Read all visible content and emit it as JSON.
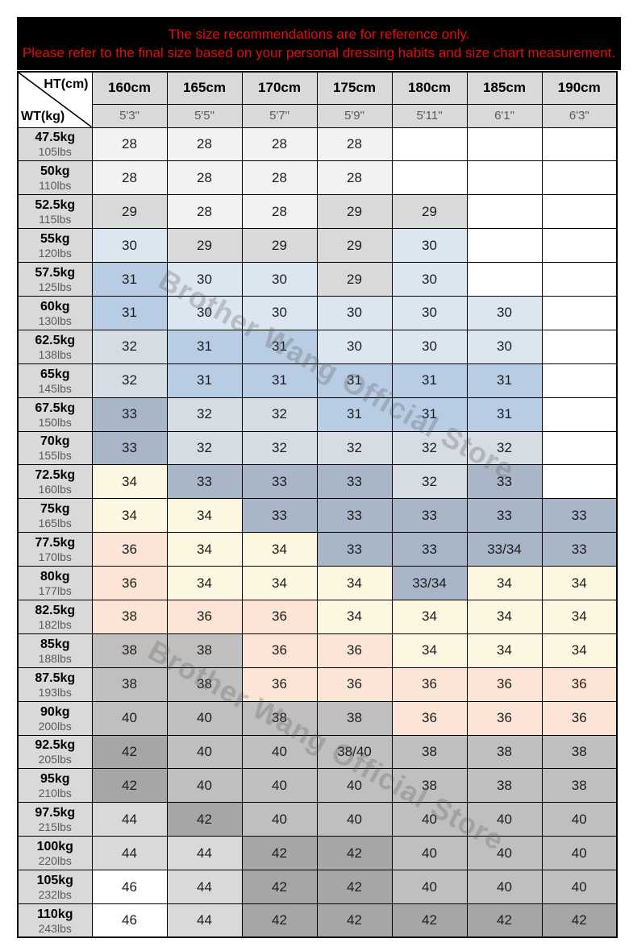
{
  "notice": {
    "line1": "The size recommendations are for reference only.",
    "line2": "Please refer to the final size based on your personal dressing habits and size chart measurement."
  },
  "watermark": {
    "text": "Brother Wang Official Store"
  },
  "colors": {
    "w": "#ffffff",
    "l1": "#f2f2f2",
    "g": "#d9d9d9",
    "b1": "#dce6f1",
    "b2": "#b8cce4",
    "bg": "#d6dce4",
    "s": "#a9b6c8",
    "c": "#fdf7e2",
    "p": "#fce4d6",
    "gr": "#bfbfbf",
    "d": "#a6a6a6",
    "accent_red": "#e60d0d",
    "banner_bg": "#000000",
    "header_bg": "#d9d9d9"
  },
  "table": {
    "corner": {
      "top": "HT(cm)",
      "bottom": "WT(kg)"
    },
    "columns": [
      {
        "cm": "160cm",
        "ft": "5'3\""
      },
      {
        "cm": "165cm",
        "ft": "5'5\""
      },
      {
        "cm": "170cm",
        "ft": "5'7\""
      },
      {
        "cm": "175cm",
        "ft": "5'9\""
      },
      {
        "cm": "180cm",
        "ft": "5'11\""
      },
      {
        "cm": "185cm",
        "ft": "6'1\""
      },
      {
        "cm": "190cm",
        "ft": "6'3\""
      }
    ],
    "rows": [
      {
        "kg": "47.5kg",
        "lbs": "105lbs",
        "cells": [
          {
            "v": "28",
            "c": "l1"
          },
          {
            "v": "28",
            "c": "l1"
          },
          {
            "v": "28",
            "c": "l1"
          },
          {
            "v": "28",
            "c": "l1"
          },
          {
            "v": "",
            "c": "w"
          },
          {
            "v": "",
            "c": "w"
          },
          {
            "v": "",
            "c": "w"
          }
        ]
      },
      {
        "kg": "50kg",
        "lbs": "110lbs",
        "cells": [
          {
            "v": "28",
            "c": "l1"
          },
          {
            "v": "28",
            "c": "l1"
          },
          {
            "v": "28",
            "c": "l1"
          },
          {
            "v": "28",
            "c": "l1"
          },
          {
            "v": "",
            "c": "w"
          },
          {
            "v": "",
            "c": "w"
          },
          {
            "v": "",
            "c": "w"
          }
        ]
      },
      {
        "kg": "52.5kg",
        "lbs": "115lbs",
        "cells": [
          {
            "v": "29",
            "c": "g"
          },
          {
            "v": "28",
            "c": "l1"
          },
          {
            "v": "28",
            "c": "l1"
          },
          {
            "v": "29",
            "c": "g"
          },
          {
            "v": "29",
            "c": "g"
          },
          {
            "v": "",
            "c": "w"
          },
          {
            "v": "",
            "c": "w"
          }
        ]
      },
      {
        "kg": "55kg",
        "lbs": "120lbs",
        "cells": [
          {
            "v": "30",
            "c": "b1"
          },
          {
            "v": "29",
            "c": "g"
          },
          {
            "v": "29",
            "c": "g"
          },
          {
            "v": "29",
            "c": "g"
          },
          {
            "v": "30",
            "c": "b1"
          },
          {
            "v": "",
            "c": "w"
          },
          {
            "v": "",
            "c": "w"
          }
        ]
      },
      {
        "kg": "57.5kg",
        "lbs": "125lbs",
        "cells": [
          {
            "v": "31",
            "c": "b2"
          },
          {
            "v": "30",
            "c": "b1"
          },
          {
            "v": "30",
            "c": "b1"
          },
          {
            "v": "29",
            "c": "g"
          },
          {
            "v": "30",
            "c": "b1"
          },
          {
            "v": "",
            "c": "w"
          },
          {
            "v": "",
            "c": "w"
          }
        ]
      },
      {
        "kg": "60kg",
        "lbs": "130lbs",
        "cells": [
          {
            "v": "31",
            "c": "b2"
          },
          {
            "v": "30",
            "c": "b1"
          },
          {
            "v": "30",
            "c": "b1"
          },
          {
            "v": "30",
            "c": "b1"
          },
          {
            "v": "30",
            "c": "b1"
          },
          {
            "v": "30",
            "c": "b1"
          },
          {
            "v": "",
            "c": "w"
          }
        ]
      },
      {
        "kg": "62.5kg",
        "lbs": "138lbs",
        "cells": [
          {
            "v": "32",
            "c": "bg"
          },
          {
            "v": "31",
            "c": "b2"
          },
          {
            "v": "31",
            "c": "b2"
          },
          {
            "v": "30",
            "c": "b1"
          },
          {
            "v": "30",
            "c": "b1"
          },
          {
            "v": "30",
            "c": "b1"
          },
          {
            "v": "",
            "c": "w"
          }
        ]
      },
      {
        "kg": "65kg",
        "lbs": "145lbs",
        "cells": [
          {
            "v": "32",
            "c": "bg"
          },
          {
            "v": "31",
            "c": "b2"
          },
          {
            "v": "31",
            "c": "b2"
          },
          {
            "v": "31",
            "c": "b2"
          },
          {
            "v": "31",
            "c": "b2"
          },
          {
            "v": "31",
            "c": "b2"
          },
          {
            "v": "",
            "c": "w"
          }
        ]
      },
      {
        "kg": "67.5kg",
        "lbs": "150lbs",
        "cells": [
          {
            "v": "33",
            "c": "s"
          },
          {
            "v": "32",
            "c": "bg"
          },
          {
            "v": "32",
            "c": "bg"
          },
          {
            "v": "31",
            "c": "b2"
          },
          {
            "v": "31",
            "c": "b2"
          },
          {
            "v": "31",
            "c": "b2"
          },
          {
            "v": "",
            "c": "w"
          }
        ]
      },
      {
        "kg": "70kg",
        "lbs": "155lbs",
        "cells": [
          {
            "v": "33",
            "c": "s"
          },
          {
            "v": "32",
            "c": "bg"
          },
          {
            "v": "32",
            "c": "bg"
          },
          {
            "v": "32",
            "c": "bg"
          },
          {
            "v": "32",
            "c": "bg"
          },
          {
            "v": "32",
            "c": "bg"
          },
          {
            "v": "",
            "c": "w"
          }
        ]
      },
      {
        "kg": "72.5kg",
        "lbs": "160lbs",
        "cells": [
          {
            "v": "34",
            "c": "c"
          },
          {
            "v": "33",
            "c": "s"
          },
          {
            "v": "33",
            "c": "s"
          },
          {
            "v": "33",
            "c": "s"
          },
          {
            "v": "32",
            "c": "bg"
          },
          {
            "v": "33",
            "c": "s"
          },
          {
            "v": "",
            "c": "w"
          }
        ]
      },
      {
        "kg": "75kg",
        "lbs": "165lbs",
        "cells": [
          {
            "v": "34",
            "c": "c"
          },
          {
            "v": "34",
            "c": "c"
          },
          {
            "v": "33",
            "c": "s"
          },
          {
            "v": "33",
            "c": "s"
          },
          {
            "v": "33",
            "c": "s"
          },
          {
            "v": "33",
            "c": "s"
          },
          {
            "v": "33",
            "c": "s"
          }
        ]
      },
      {
        "kg": "77.5kg",
        "lbs": "170lbs",
        "cells": [
          {
            "v": "36",
            "c": "p"
          },
          {
            "v": "34",
            "c": "c"
          },
          {
            "v": "34",
            "c": "c"
          },
          {
            "v": "33",
            "c": "s"
          },
          {
            "v": "33",
            "c": "s"
          },
          {
            "v": "33/34",
            "c": "s"
          },
          {
            "v": "33",
            "c": "s"
          }
        ]
      },
      {
        "kg": "80kg",
        "lbs": "177lbs",
        "cells": [
          {
            "v": "36",
            "c": "p"
          },
          {
            "v": "34",
            "c": "c"
          },
          {
            "v": "34",
            "c": "c"
          },
          {
            "v": "34",
            "c": "c"
          },
          {
            "v": "33/34",
            "c": "s"
          },
          {
            "v": "34",
            "c": "c"
          },
          {
            "v": "34",
            "c": "c"
          }
        ]
      },
      {
        "kg": "82.5kg",
        "lbs": "182lbs",
        "cells": [
          {
            "v": "38",
            "c": "p"
          },
          {
            "v": "36",
            "c": "p"
          },
          {
            "v": "36",
            "c": "p"
          },
          {
            "v": "34",
            "c": "c"
          },
          {
            "v": "34",
            "c": "c"
          },
          {
            "v": "34",
            "c": "c"
          },
          {
            "v": "34",
            "c": "c"
          }
        ]
      },
      {
        "kg": "85kg",
        "lbs": "188lbs",
        "cells": [
          {
            "v": "38",
            "c": "gr"
          },
          {
            "v": "38",
            "c": "gr"
          },
          {
            "v": "36",
            "c": "p"
          },
          {
            "v": "36",
            "c": "p"
          },
          {
            "v": "34",
            "c": "c"
          },
          {
            "v": "34",
            "c": "c"
          },
          {
            "v": "34",
            "c": "c"
          }
        ]
      },
      {
        "kg": "87.5kg",
        "lbs": "193lbs",
        "cells": [
          {
            "v": "38",
            "c": "gr"
          },
          {
            "v": "38",
            "c": "gr"
          },
          {
            "v": "36",
            "c": "p"
          },
          {
            "v": "36",
            "c": "p"
          },
          {
            "v": "36",
            "c": "p"
          },
          {
            "v": "36",
            "c": "p"
          },
          {
            "v": "36",
            "c": "p"
          }
        ]
      },
      {
        "kg": "90kg",
        "lbs": "200lbs",
        "cells": [
          {
            "v": "40",
            "c": "gr"
          },
          {
            "v": "40",
            "c": "gr"
          },
          {
            "v": "38",
            "c": "gr"
          },
          {
            "v": "38",
            "c": "gr"
          },
          {
            "v": "36",
            "c": "p"
          },
          {
            "v": "36",
            "c": "p"
          },
          {
            "v": "36",
            "c": "p"
          }
        ]
      },
      {
        "kg": "92.5kg",
        "lbs": "205lbs",
        "cells": [
          {
            "v": "42",
            "c": "d"
          },
          {
            "v": "40",
            "c": "gr"
          },
          {
            "v": "40",
            "c": "gr"
          },
          {
            "v": "38/40",
            "c": "gr"
          },
          {
            "v": "38",
            "c": "gr"
          },
          {
            "v": "38",
            "c": "gr"
          },
          {
            "v": "38",
            "c": "gr"
          }
        ]
      },
      {
        "kg": "95kg",
        "lbs": "210lbs",
        "cells": [
          {
            "v": "42",
            "c": "d"
          },
          {
            "v": "40",
            "c": "gr"
          },
          {
            "v": "40",
            "c": "gr"
          },
          {
            "v": "40",
            "c": "gr"
          },
          {
            "v": "38",
            "c": "gr"
          },
          {
            "v": "38",
            "c": "gr"
          },
          {
            "v": "38",
            "c": "gr"
          }
        ]
      },
      {
        "kg": "97.5kg",
        "lbs": "215lbs",
        "cells": [
          {
            "v": "44",
            "c": "g"
          },
          {
            "v": "42",
            "c": "d"
          },
          {
            "v": "40",
            "c": "gr"
          },
          {
            "v": "40",
            "c": "gr"
          },
          {
            "v": "40",
            "c": "gr"
          },
          {
            "v": "40",
            "c": "gr"
          },
          {
            "v": "40",
            "c": "gr"
          }
        ]
      },
      {
        "kg": "100kg",
        "lbs": "220lbs",
        "cells": [
          {
            "v": "44",
            "c": "g"
          },
          {
            "v": "44",
            "c": "g"
          },
          {
            "v": "42",
            "c": "d"
          },
          {
            "v": "42",
            "c": "d"
          },
          {
            "v": "40",
            "c": "gr"
          },
          {
            "v": "40",
            "c": "gr"
          },
          {
            "v": "40",
            "c": "gr"
          }
        ]
      },
      {
        "kg": "105kg",
        "lbs": "232lbs",
        "cells": [
          {
            "v": "46",
            "c": "w"
          },
          {
            "v": "44",
            "c": "g"
          },
          {
            "v": "42",
            "c": "d"
          },
          {
            "v": "42",
            "c": "d"
          },
          {
            "v": "40",
            "c": "gr"
          },
          {
            "v": "40",
            "c": "gr"
          },
          {
            "v": "40",
            "c": "gr"
          }
        ]
      },
      {
        "kg": "110kg",
        "lbs": "243lbs",
        "cells": [
          {
            "v": "46",
            "c": "w"
          },
          {
            "v": "44",
            "c": "g"
          },
          {
            "v": "42",
            "c": "d"
          },
          {
            "v": "42",
            "c": "d"
          },
          {
            "v": "42",
            "c": "d"
          },
          {
            "v": "42",
            "c": "d"
          },
          {
            "v": "42",
            "c": "d"
          }
        ]
      }
    ]
  }
}
